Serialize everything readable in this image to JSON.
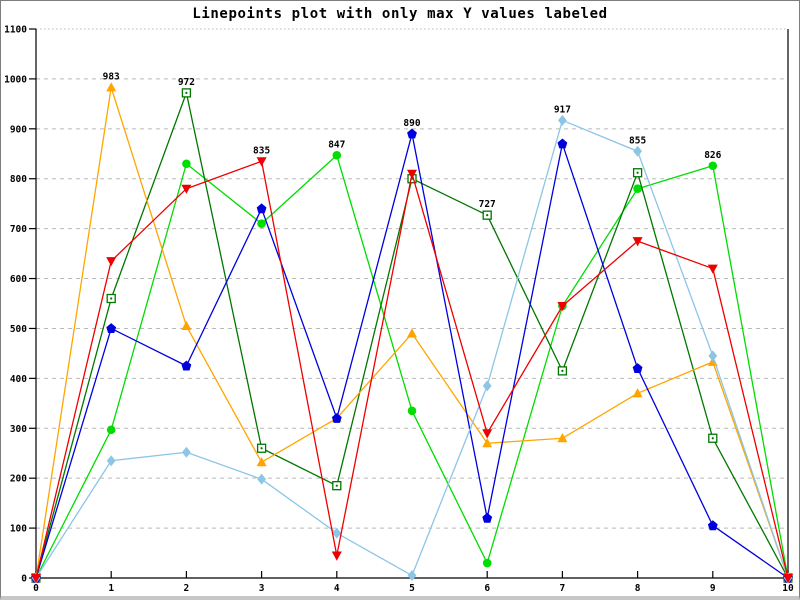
{
  "window": {
    "background": "#ffffff",
    "border_color": "#7d7d7d",
    "bottom_edge_color": "#c6c6c6"
  },
  "chart_data": {
    "type": "line",
    "title": "Linepoints plot with only max Y values labeled",
    "xlabel": "",
    "ylabel": "",
    "xlim": [
      0,
      10
    ],
    "ylim": [
      0,
      1100
    ],
    "x_ticks": [
      0,
      1,
      2,
      3,
      4,
      5,
      6,
      7,
      8,
      9,
      10
    ],
    "y_ticks": [
      0,
      100,
      200,
      300,
      400,
      500,
      600,
      700,
      800,
      900,
      1000,
      1100
    ],
    "grid": "horizontal",
    "grid_color": "#b9b9b9",
    "axis_color": "#000000",
    "legend": "none",
    "x": [
      0,
      1,
      2,
      3,
      4,
      5,
      6,
      7,
      8,
      9,
      10
    ],
    "series": [
      {
        "name": "green-circles",
        "color": "#00dd00",
        "marker": "filled-circle",
        "values": [
          0,
          297,
          830,
          710,
          847,
          335,
          30,
          545,
          780,
          826,
          0
        ]
      },
      {
        "name": "dark-green-squares",
        "color": "#007700",
        "marker": "open-square",
        "values": [
          0,
          560,
          972,
          260,
          185,
          800,
          727,
          415,
          812,
          280,
          0
        ]
      },
      {
        "name": "orange-triangles-up",
        "color": "#ffa500",
        "marker": "filled-triangle-up",
        "values": [
          0,
          983,
          505,
          232,
          320,
          490,
          270,
          280,
          370,
          433,
          0
        ]
      },
      {
        "name": "blue-pentagons",
        "color": "#0000dd",
        "marker": "filled-pentagon",
        "values": [
          0,
          500,
          425,
          740,
          320,
          890,
          120,
          870,
          420,
          105,
          0
        ]
      },
      {
        "name": "light-blue-diamonds",
        "color": "#8cc6e6",
        "marker": "filled-diamond",
        "values": [
          0,
          235,
          252,
          198,
          90,
          5,
          385,
          917,
          855,
          445,
          0
        ]
      },
      {
        "name": "red-triangles-down",
        "color": "#ee0000",
        "marker": "filled-triangle-down",
        "values": [
          0,
          635,
          780,
          835,
          45,
          810,
          290,
          545,
          675,
          620,
          0
        ]
      }
    ],
    "point_labels": [
      {
        "x": 1,
        "y": 983,
        "text": "983",
        "series": "orange-triangles-up"
      },
      {
        "x": 2,
        "y": 972,
        "text": "972",
        "series": "dark-green-squares"
      },
      {
        "x": 3,
        "y": 835,
        "text": "835",
        "series": "red-triangles-down"
      },
      {
        "x": 4,
        "y": 847,
        "text": "847",
        "series": "green-circles"
      },
      {
        "x": 5,
        "y": 890,
        "text": "890",
        "series": "blue-pentagons"
      },
      {
        "x": 6,
        "y": 727,
        "text": "727",
        "series": "dark-green-squares"
      },
      {
        "x": 7,
        "y": 917,
        "text": "917",
        "series": "light-blue-diamonds"
      },
      {
        "x": 8,
        "y": 855,
        "text": "855",
        "series": "light-blue-diamonds"
      },
      {
        "x": 9,
        "y": 826,
        "text": "826",
        "series": "green-circles"
      }
    ]
  }
}
